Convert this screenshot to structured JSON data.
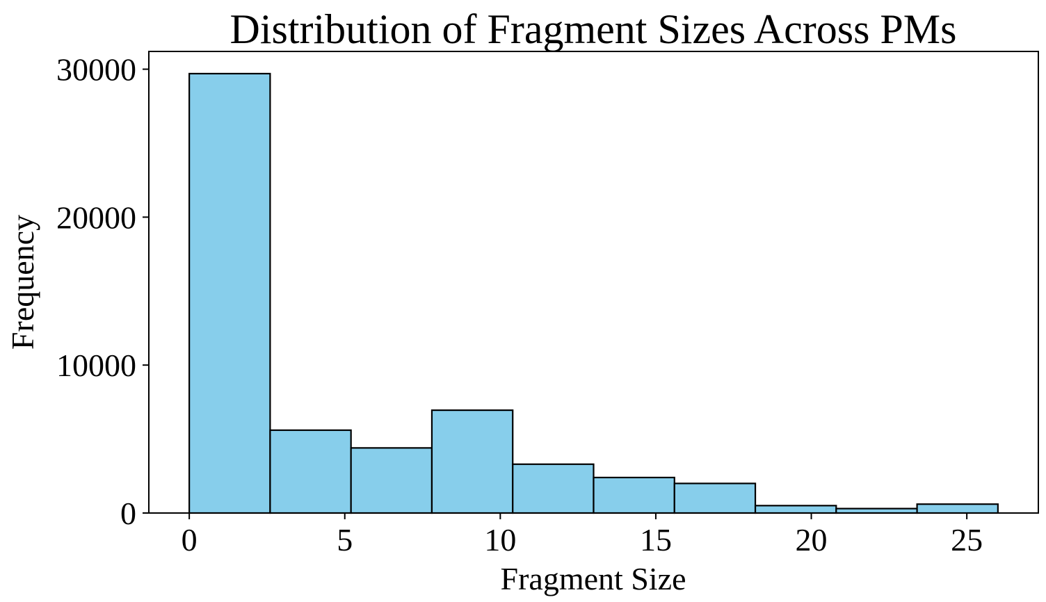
{
  "chart_data": {
    "type": "bar",
    "subtype": "histogram",
    "title": "Distribution of Fragment Sizes Across PMs",
    "xlabel": "Fragment Size",
    "ylabel": "Frequency",
    "bin_edges": [
      0,
      2.6,
      5.2,
      7.8,
      10.4,
      13.0,
      15.6,
      18.2,
      20.8,
      23.4,
      26.0
    ],
    "values": [
      29700,
      5600,
      4400,
      6950,
      3300,
      2400,
      2000,
      500,
      300,
      600
    ],
    "xlim": [
      -1.3,
      27.3
    ],
    "ylim": [
      0,
      31200
    ],
    "xticks": [
      0,
      5,
      10,
      15,
      20,
      25
    ],
    "yticks": [
      0,
      10000,
      20000,
      30000
    ],
    "bar_color": "#87CEEB",
    "edge_color": "#000000",
    "grid": false,
    "legend": false
  }
}
